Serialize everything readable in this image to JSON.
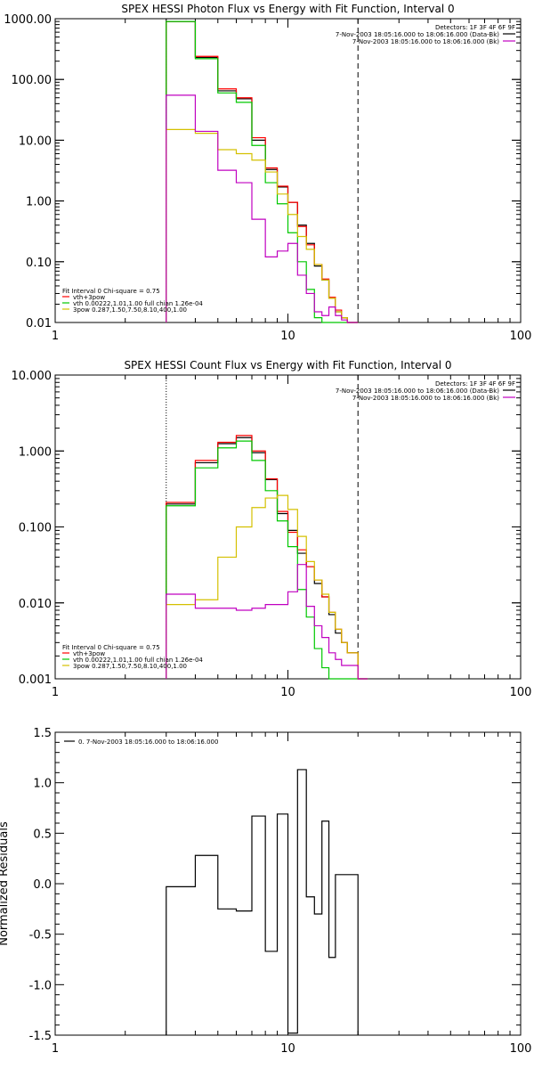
{
  "chart_data": [
    {
      "type": "line",
      "title": "SPEX HESSI Photon Flux vs Energy with Fit Function, Interval 0",
      "xscale": "log",
      "yscale": "log",
      "xlim": [
        1,
        100
      ],
      "ylim": [
        0.01,
        1000
      ],
      "x_ticks": [
        "1",
        "10",
        "100"
      ],
      "y_ticks": [
        "0.01",
        "0.10",
        "1.00",
        "10.00",
        "100.00",
        "1000.00"
      ],
      "header": "Detectors: 1F 3F 4F 6F 9F",
      "legend_top": [
        {
          "text": "7-Nov-2003 18:05:16.000 to 18:06:16.000 (Data-Bk)",
          "color": "#000000"
        },
        {
          "text": "7-Nov-2003 18:05:16.000 to 18:06:16.000 (Bk)",
          "color": "#c000c0"
        }
      ],
      "fit_header": "Fit Interval 0   Chi-square = 0.75",
      "legend_bottom": [
        {
          "text": "vth+3pow",
          "color": "#ff0000"
        },
        {
          "text": "vth 0.00222,1.01,1.00  full chian 1.26e-04",
          "color": "#00c800"
        },
        {
          "text": "3pow 0.287,1.50,7.50,8.10,400,1.00",
          "color": "#d4c000"
        }
      ],
      "vlines": [
        {
          "x": 3,
          "style": "dotted"
        },
        {
          "x": 20,
          "style": "dashed"
        }
      ],
      "edges": [
        3,
        4,
        5,
        6,
        7,
        8,
        9,
        10,
        11,
        12,
        13,
        14,
        15,
        16,
        17,
        18,
        20
      ],
      "series": [
        {
          "color": "#000000",
          "values": [
            900,
            230,
            65,
            48,
            10,
            3.3,
            1.7,
            0.95,
            0.4,
            0.2,
            0.085,
            0.05,
            0.025,
            0.015,
            0.012,
            0.01
          ]
        },
        {
          "color": "#ff0000",
          "values": [
            900,
            240,
            70,
            50,
            11,
            3.5,
            1.75,
            0.95,
            0.38,
            0.19,
            0.09,
            0.052,
            0.026,
            0.016,
            0.012,
            0.01
          ]
        },
        {
          "color": "#00c800",
          "values": [
            900,
            220,
            60,
            42,
            8.2,
            2.0,
            0.9,
            0.3,
            0.1,
            0.035,
            0.012,
            0.01,
            0.01,
            0.01,
            0.01,
            0.01
          ]
        },
        {
          "color": "#d4c000",
          "values": [
            15,
            13,
            7,
            6,
            4.7,
            3.0,
            1.3,
            0.6,
            0.26,
            0.16,
            0.09,
            0.05,
            0.025,
            0.015,
            0.012,
            0.01
          ]
        },
        {
          "color": "#c000c0",
          "values": [
            55,
            14,
            3.2,
            2.0,
            0.5,
            0.12,
            0.15,
            0.2,
            0.06,
            0.03,
            0.015,
            0.013,
            0.018,
            0.013,
            0.011,
            0.01
          ]
        }
      ]
    },
    {
      "type": "line",
      "title": "SPEX HESSI Count Flux vs Energy with Fit Function, Interval 0",
      "xscale": "log",
      "yscale": "log",
      "xlim": [
        1,
        100
      ],
      "ylim": [
        0.001,
        10
      ],
      "x_ticks": [
        "1",
        "10",
        "100"
      ],
      "y_ticks": [
        "0.001",
        "0.010",
        "0.100",
        "1.000",
        "10.000"
      ],
      "header": "Detectors: 1F 3F 4F 6F 9F",
      "legend_top": [
        {
          "text": "7-Nov-2003 18:05:16.000 to 18:06:16.000 (Data-Bk)",
          "color": "#000000"
        },
        {
          "text": "7-Nov-2003 18:05:16.000 to 18:06:16.000 (Bk)",
          "color": "#c000c0"
        }
      ],
      "fit_header": "Fit Interval 0   Chi-square = 0.75",
      "legend_bottom": [
        {
          "text": "vth+3pow",
          "color": "#ff0000"
        },
        {
          "text": "vth 0.00222,1.01,1.00  full chian 1.26e-04",
          "color": "#00c800"
        },
        {
          "text": "3pow 0.287,1.50,7.50,8.10,400,1.00",
          "color": "#d4c000"
        }
      ],
      "vlines": [
        {
          "x": 3,
          "style": "dotted"
        },
        {
          "x": 20,
          "style": "dashed"
        }
      ],
      "edges": [
        3,
        4,
        5,
        6,
        7,
        8,
        9,
        10,
        11,
        12,
        13,
        14,
        15,
        16,
        17,
        18,
        20,
        22
      ],
      "series": [
        {
          "color": "#000000",
          "values": [
            0.2,
            0.7,
            1.25,
            1.5,
            0.95,
            0.42,
            0.15,
            0.09,
            0.045,
            0.03,
            0.018,
            0.012,
            0.007,
            0.004,
            0.003,
            0.0022,
            0.001
          ]
        },
        {
          "color": "#ff0000",
          "values": [
            0.21,
            0.75,
            1.3,
            1.6,
            1.0,
            0.43,
            0.16,
            0.085,
            0.05,
            0.03,
            0.02,
            0.012,
            0.0075,
            0.0045,
            0.003,
            0.0022,
            0.001
          ]
        },
        {
          "color": "#00c800",
          "values": [
            0.19,
            0.6,
            1.1,
            1.35,
            0.75,
            0.3,
            0.12,
            0.055,
            0.015,
            0.0065,
            0.0025,
            0.0014,
            0.001,
            0.001,
            0.001,
            0.001,
            0.001
          ]
        },
        {
          "color": "#d4c000",
          "values": [
            0.0095,
            0.011,
            0.04,
            0.1,
            0.18,
            0.24,
            0.26,
            0.17,
            0.075,
            0.035,
            0.02,
            0.013,
            0.0075,
            0.0045,
            0.003,
            0.0022,
            0.001
          ]
        },
        {
          "color": "#c000c0",
          "values": [
            0.013,
            0.0085,
            0.0085,
            0.008,
            0.0085,
            0.0095,
            0.0095,
            0.014,
            0.032,
            0.009,
            0.005,
            0.0035,
            0.0022,
            0.0018,
            0.0015,
            0.0015,
            0.001
          ]
        }
      ]
    },
    {
      "type": "line",
      "title": "",
      "xscale": "log",
      "yscale": "linear",
      "xlim": [
        1,
        100
      ],
      "ylim": [
        -1.5,
        1.5
      ],
      "x_ticks": [
        "1",
        "10",
        "100"
      ],
      "y_ticks": [
        "-1.5",
        "-1.0",
        "-0.5",
        "0.0",
        "0.5",
        "1.0",
        "1.5"
      ],
      "ylabel": "Normalized Residuals",
      "legend_top": [
        {
          "text": "0. 7-Nov-2003 18:05:16.000 to 18:06:16.000",
          "color": "#000000"
        }
      ],
      "edges": [
        3,
        4,
        5,
        6,
        7,
        8,
        9,
        10,
        11,
        12,
        13,
        14,
        15,
        16,
        17,
        18,
        20
      ],
      "series": [
        {
          "color": "#000000",
          "values": [
            -0.03,
            0.28,
            -0.25,
            -0.27,
            0.67,
            -0.67,
            0.69,
            -1.48,
            1.13,
            -0.13,
            -0.3,
            0.62,
            -0.73,
            0.09,
            0.09,
            0.09
          ]
        }
      ]
    }
  ]
}
